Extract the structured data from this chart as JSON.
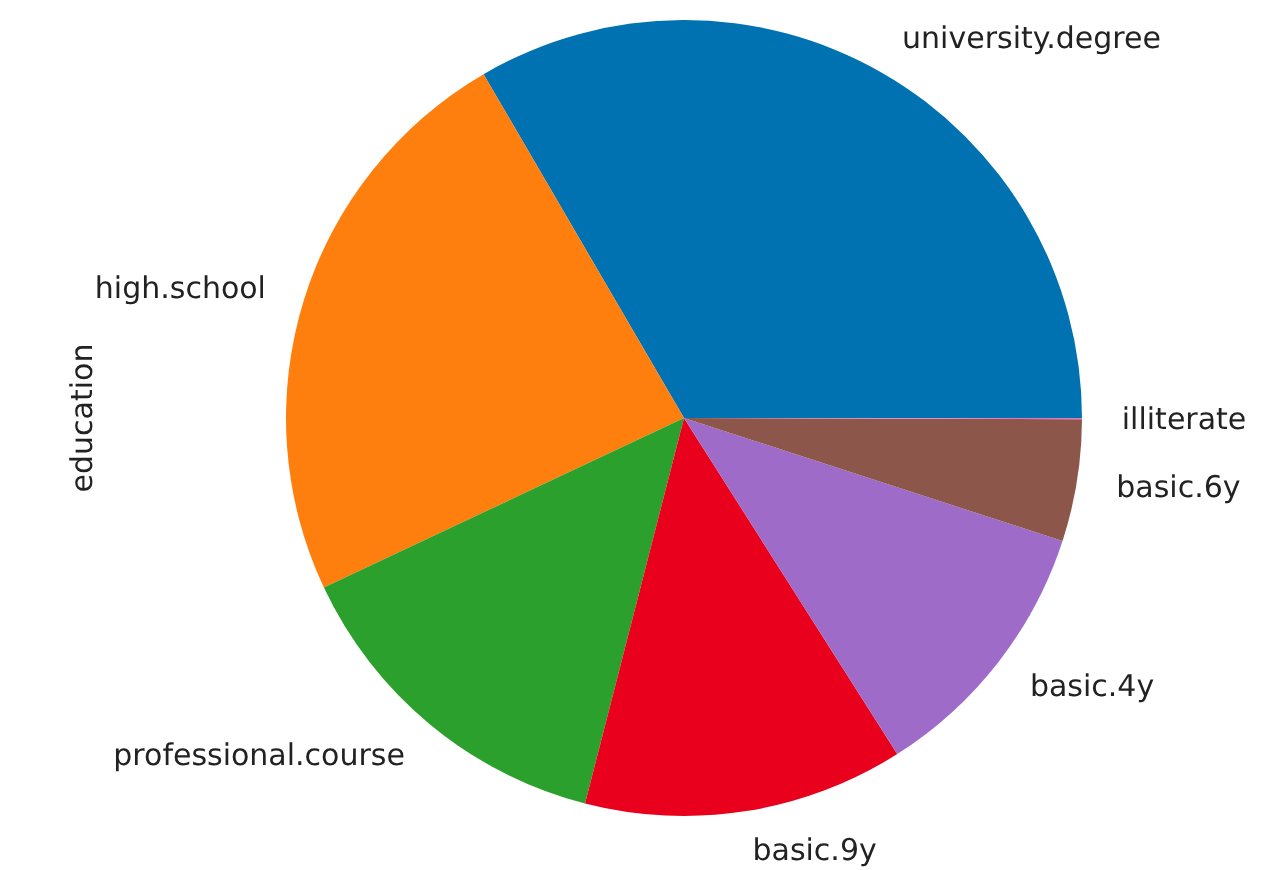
{
  "chart_data": {
    "type": "pie",
    "ylabel": "education",
    "categories": [
      "university.degree",
      "high.school",
      "professional.course",
      "basic.9y",
      "basic.4y",
      "basic.6y",
      "illiterate"
    ],
    "values": [
      33.4,
      23.6,
      14.0,
      13.0,
      11.0,
      4.95,
      0.05
    ],
    "colors": [
      "#0072b2",
      "#ff7f0e",
      "#2ca02c",
      "#e8001c",
      "#9e6bc8",
      "#8c564b",
      "#e377c2"
    ],
    "legend": false
  }
}
